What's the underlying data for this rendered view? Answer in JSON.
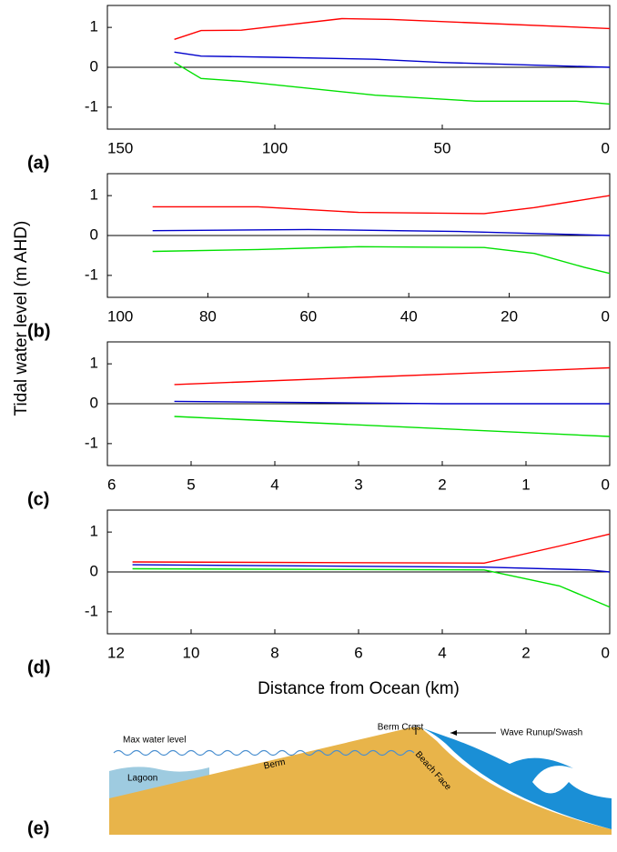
{
  "chart_data": [
    {
      "type": "line",
      "panel_label": "(a)",
      "xlim": [
        150,
        0
      ],
      "xticks": [
        150,
        100,
        50,
        0
      ],
      "ylim": [
        -1.55,
        1.55
      ],
      "yticks": [
        -1,
        0,
        1
      ],
      "series": [
        {
          "color": "#ff0000",
          "x": [
            130,
            122,
            110,
            80,
            65,
            0
          ],
          "values": [
            0.7,
            0.92,
            0.93,
            1.22,
            1.2,
            0.97
          ]
        },
        {
          "color": "#0000cc",
          "x": [
            130,
            122,
            100,
            70,
            50,
            0
          ],
          "values": [
            0.38,
            0.28,
            0.25,
            0.2,
            0.12,
            0.0
          ]
        },
        {
          "color": "#00e000",
          "x": [
            130,
            122,
            110,
            70,
            40,
            10,
            0
          ],
          "values": [
            0.12,
            -0.28,
            -0.35,
            -0.7,
            -0.85,
            -0.85,
            -0.92
          ]
        }
      ]
    },
    {
      "type": "line",
      "panel_label": "(b)",
      "xlim": [
        100,
        0
      ],
      "xticks": [
        100,
        80,
        60,
        40,
        20,
        0
      ],
      "ylim": [
        -1.55,
        1.55
      ],
      "yticks": [
        -1,
        0,
        1
      ],
      "series": [
        {
          "color": "#ff0000",
          "x": [
            91,
            70,
            50,
            25,
            15,
            0
          ],
          "values": [
            0.72,
            0.72,
            0.58,
            0.55,
            0.7,
            1.0
          ]
        },
        {
          "color": "#0000cc",
          "x": [
            91,
            60,
            30,
            0
          ],
          "values": [
            0.12,
            0.15,
            0.1,
            0.0
          ]
        },
        {
          "color": "#00e000",
          "x": [
            91,
            70,
            50,
            25,
            15,
            5,
            0
          ],
          "values": [
            -0.4,
            -0.35,
            -0.28,
            -0.3,
            -0.45,
            -0.8,
            -0.95
          ]
        }
      ]
    },
    {
      "type": "line",
      "panel_label": "(c)",
      "xlim": [
        6,
        0
      ],
      "xticks": [
        6,
        5,
        4,
        3,
        2,
        1,
        0
      ],
      "ylim": [
        -1.55,
        1.55
      ],
      "yticks": [
        -1,
        0,
        1
      ],
      "series": [
        {
          "color": "#ff0000",
          "x": [
            5.2,
            0
          ],
          "values": [
            0.48,
            0.9
          ]
        },
        {
          "color": "#0000cc",
          "x": [
            5.2,
            2,
            0
          ],
          "values": [
            0.06,
            0.0,
            0.0
          ]
        },
        {
          "color": "#00e000",
          "x": [
            5.2,
            0
          ],
          "values": [
            -0.32,
            -0.82
          ]
        }
      ]
    },
    {
      "type": "line",
      "panel_label": "(d)",
      "xlim": [
        12,
        0
      ],
      "xticks": [
        12,
        10,
        8,
        6,
        4,
        2,
        0
      ],
      "ylim": [
        -1.55,
        1.55
      ],
      "yticks": [
        -1,
        0,
        1
      ],
      "series": [
        {
          "color": "#ff0000",
          "x": [
            11.4,
            3,
            1.2,
            0
          ],
          "values": [
            0.25,
            0.22,
            0.65,
            0.95
          ]
        },
        {
          "color": "#0000cc",
          "x": [
            11.4,
            3,
            0.5,
            0
          ],
          "values": [
            0.18,
            0.12,
            0.05,
            0.0
          ]
        },
        {
          "color": "#00e000",
          "x": [
            11.4,
            3,
            1.2,
            0
          ],
          "values": [
            0.08,
            0.05,
            -0.35,
            -0.88
          ]
        }
      ]
    }
  ],
  "y_label": "Tidal water level (m AHD)",
  "x_label": "Distance from Ocean (km)",
  "diagram": {
    "panel_label": "(e)",
    "max_water_level": "Max water level",
    "berm_crest": "Berm Crest",
    "runup": "Wave Runup/Swash",
    "lagoon": "Lagoon",
    "berm": "Berm",
    "beach_face": "Beach Face"
  }
}
